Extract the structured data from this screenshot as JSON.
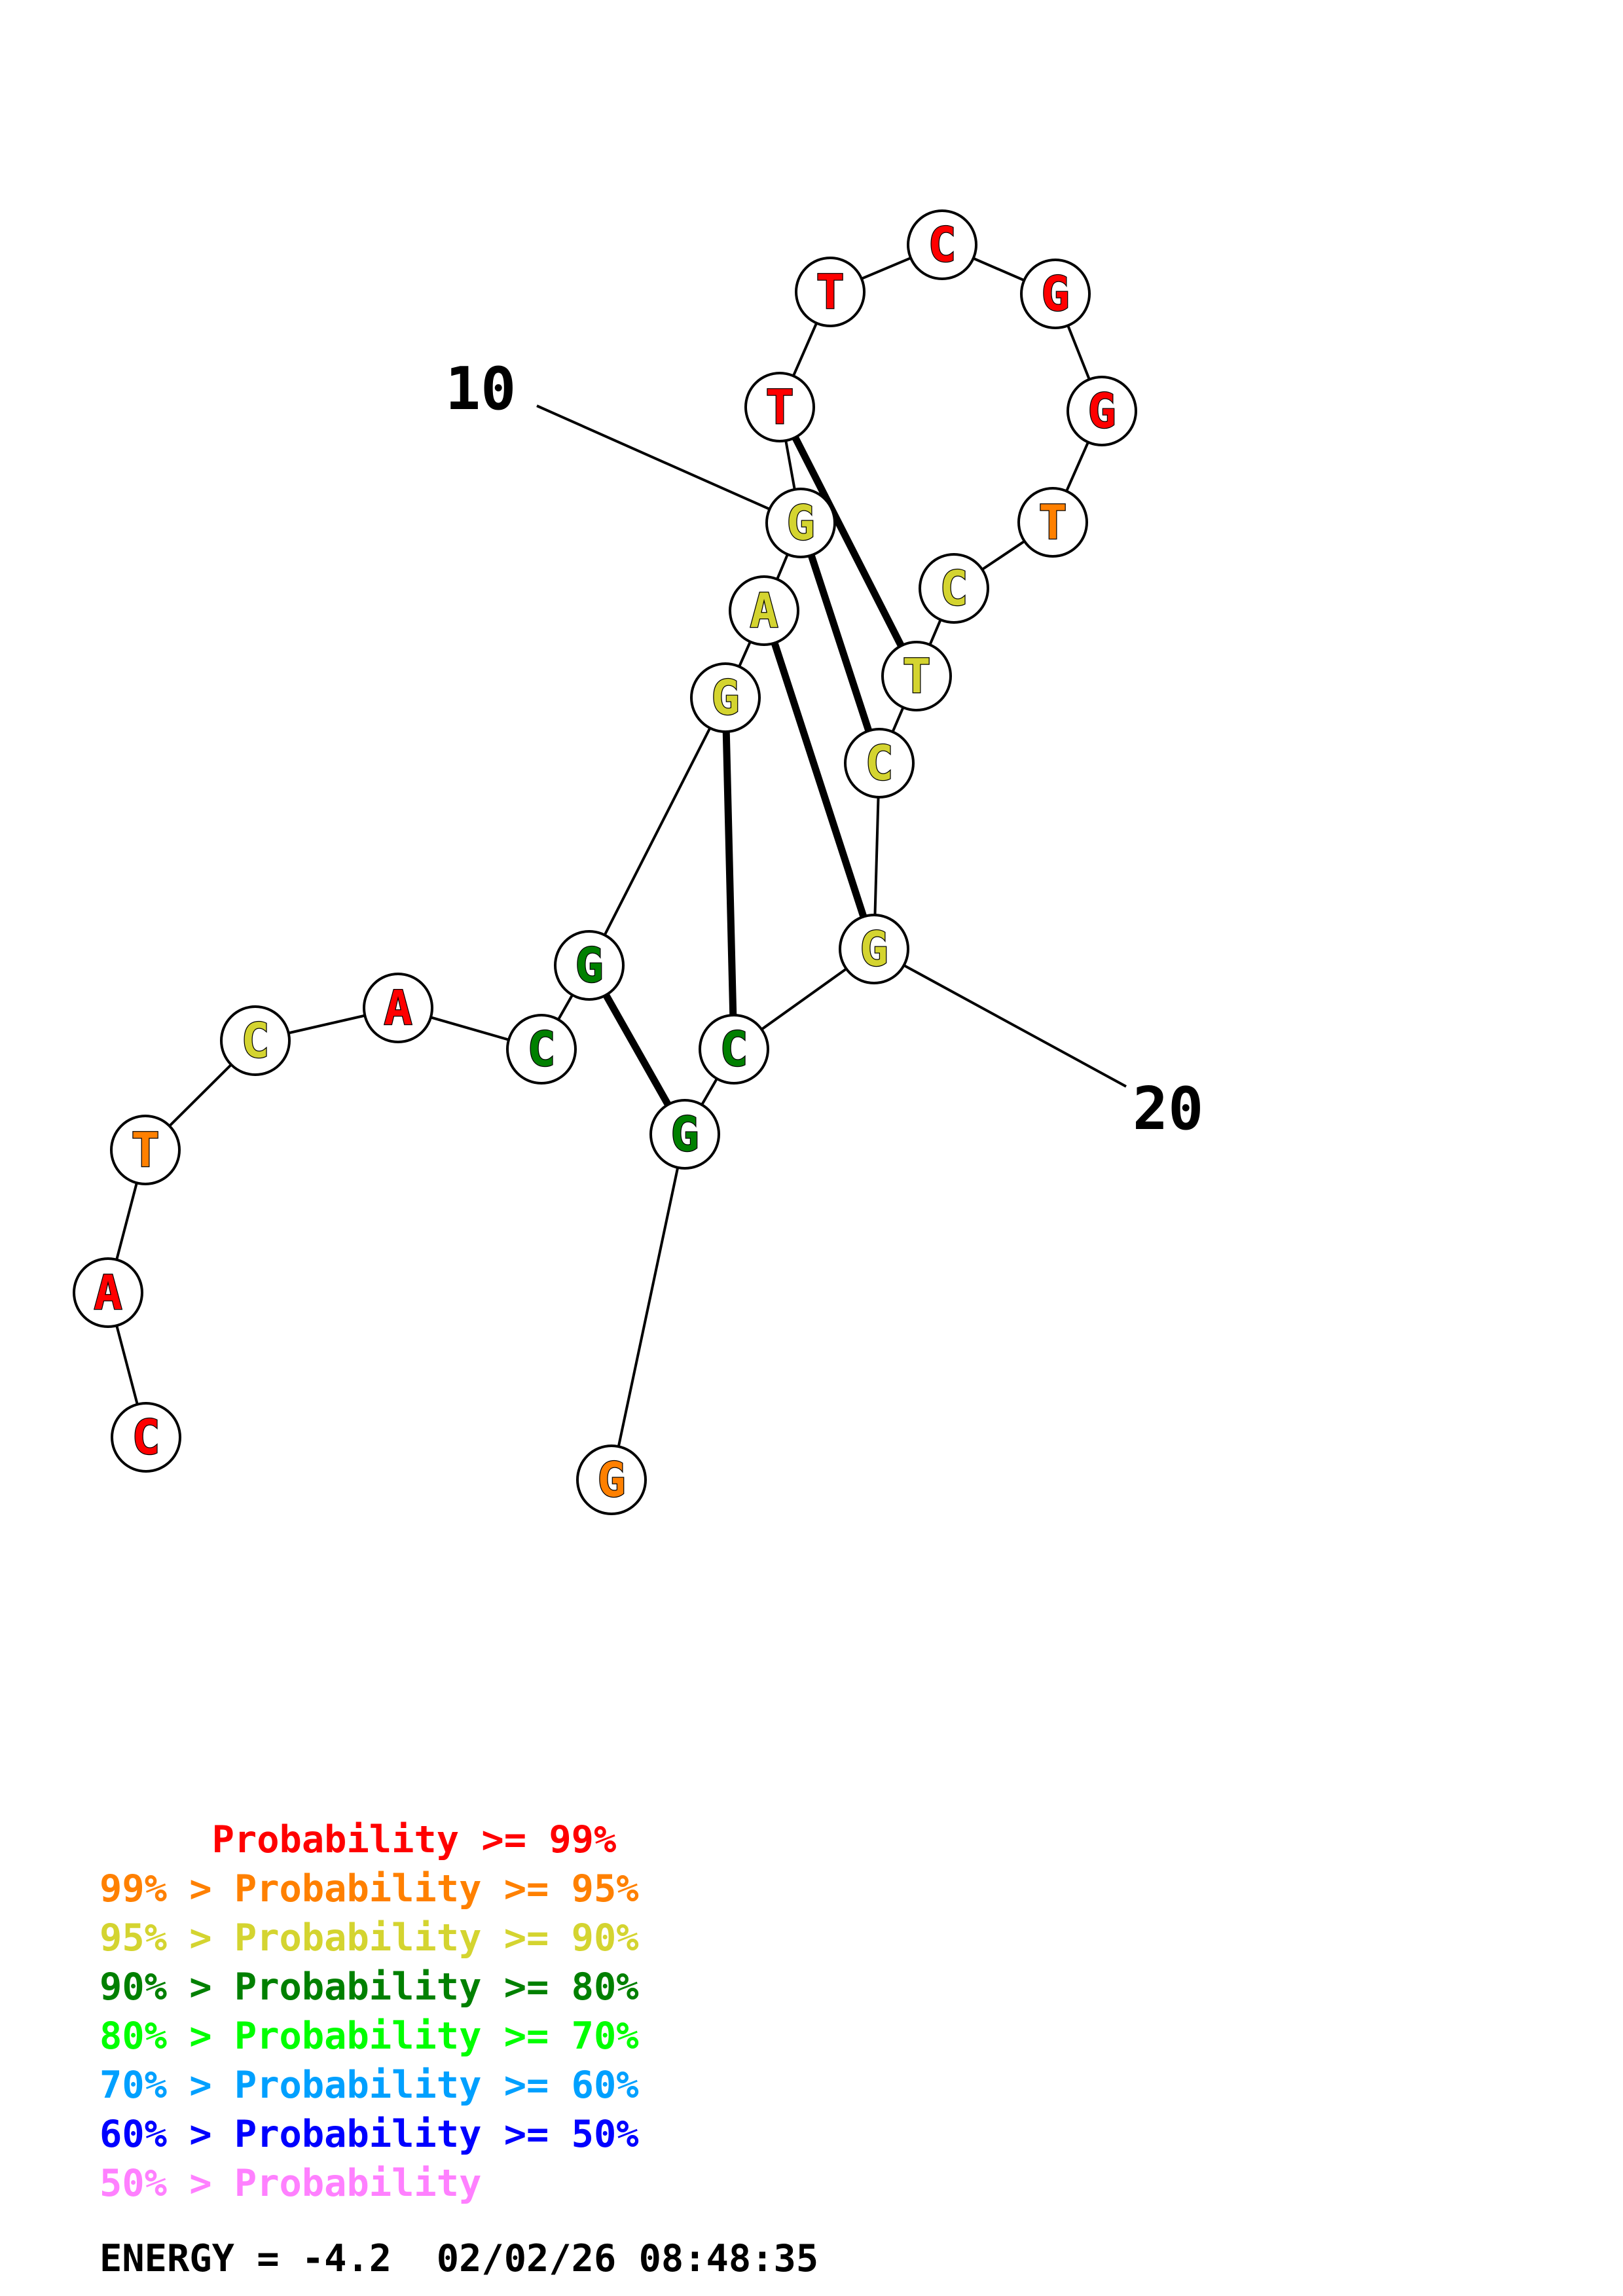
{
  "structure": {
    "nucleotides": [
      {
        "base": "C",
        "color": "#ff0000"
      },
      {
        "base": "A",
        "color": "#ff0000"
      },
      {
        "base": "T",
        "color": "#ff8000"
      },
      {
        "base": "C",
        "color": "#d4d430"
      },
      {
        "base": "A",
        "color": "#ff0000"
      },
      {
        "base": "C",
        "color": "#008000"
      },
      {
        "base": "G",
        "color": "#008000"
      },
      {
        "base": "G",
        "color": "#d4d430"
      },
      {
        "base": "A",
        "color": "#d4d430"
      },
      {
        "base": "G",
        "color": "#d4d430"
      },
      {
        "base": "T",
        "color": "#ff0000"
      },
      {
        "base": "T",
        "color": "#ff0000"
      },
      {
        "base": "C",
        "color": "#ff0000"
      },
      {
        "base": "G",
        "color": "#ff0000"
      },
      {
        "base": "G",
        "color": "#ff0000"
      },
      {
        "base": "T",
        "color": "#ff8000"
      },
      {
        "base": "C",
        "color": "#d4d430"
      },
      {
        "base": "T",
        "color": "#d4d430"
      },
      {
        "base": "C",
        "color": "#d4d430"
      },
      {
        "base": "G",
        "color": "#d4d430"
      },
      {
        "base": "C",
        "color": "#008000"
      },
      {
        "base": "G",
        "color": "#008000"
      },
      {
        "base": "G",
        "color": "#ff8000"
      }
    ],
    "pairs": [
      [
        6,
        21
      ],
      [
        7,
        20
      ],
      [
        8,
        19
      ],
      [
        9,
        18
      ],
      [
        10,
        17
      ]
    ],
    "index_labels": [
      "10",
      "20"
    ]
  },
  "legend": [
    {
      "text": "     Probability >= 99%",
      "color": "#ff0000"
    },
    {
      "text": "99% > Probability >= 95%",
      "color": "#ff8000"
    },
    {
      "text": "95% > Probability >= 90%",
      "color": "#d4d430"
    },
    {
      "text": "90% > Probability >= 80%",
      "color": "#008000"
    },
    {
      "text": "80% > Probability >= 70%",
      "color": "#00ff00"
    },
    {
      "text": "70% > Probability >= 60%",
      "color": "#00a0ff"
    },
    {
      "text": "60% > Probability >= 50%",
      "color": "#0000ff"
    },
    {
      "text": "50% > Probability",
      "color": "#ff80ff"
    }
  ],
  "footer": {
    "energy_line": "ENERGY = -4.2  02/02/26 08:48:35",
    "color": "#000000"
  }
}
